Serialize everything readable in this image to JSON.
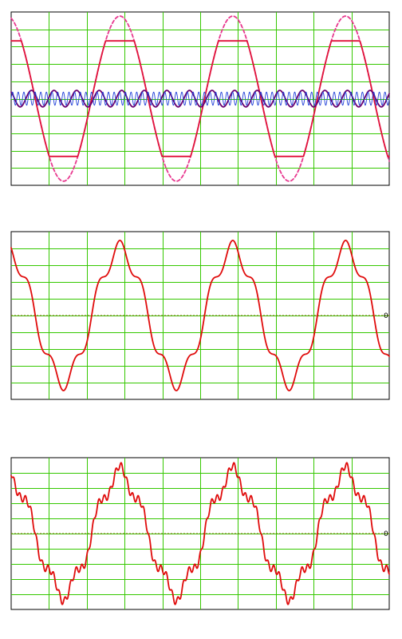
{
  "chart_data": [
    {
      "type": "line",
      "title": "",
      "xlabel": "",
      "ylabel": "",
      "xlim": [
        0,
        3.35
      ],
      "ylim": [
        -1.05,
        1.05
      ],
      "grid": true,
      "x_gridlines": 10,
      "y_gridlines": 10,
      "zero_reference": false,
      "series": [
        {
          "kind": "sine",
          "amplitude": 1.0,
          "frequency": 1,
          "phase": 1.8,
          "color": "#e8388f",
          "dash": true
        },
        {
          "kind": "clipped-sine",
          "amplitude": 1.0,
          "clip": 0.7,
          "frequency": 1,
          "phase": 1.8,
          "color": "#e0143c"
        },
        {
          "kind": "sine",
          "amplitude": 0.1,
          "frequency": 5,
          "phase": 2.2,
          "color": "#6a006e"
        },
        {
          "kind": "sine",
          "amplitude": 0.08,
          "frequency": 20,
          "phase": 0.0,
          "color": "#1f3fd8"
        }
      ]
    },
    {
      "type": "line",
      "title": "",
      "xlabel": "",
      "ylabel": "",
      "xlim": [
        0,
        3.35
      ],
      "ylim": [
        -1.05,
        1.05
      ],
      "grid": true,
      "x_gridlines": 10,
      "y_gridlines": 10,
      "zero_reference": true,
      "zero_label": "0",
      "series": [
        {
          "kind": "fundamental+5th",
          "amplitude": 0.82,
          "h5": 0.12,
          "frequency": 1,
          "phase": 1.8,
          "color": "#e00c0c"
        }
      ]
    },
    {
      "type": "line",
      "title": "",
      "xlabel": "",
      "ylabel": "",
      "xlim": [
        0,
        3.35
      ],
      "ylim": [
        -1.05,
        1.05
      ],
      "grid": true,
      "x_gridlines": 10,
      "y_gridlines": 10,
      "zero_reference": true,
      "zero_label": "0",
      "series": [
        {
          "kind": "fundamental+5th+20th",
          "amplitude": 0.82,
          "h5": 0.12,
          "h20": 0.05,
          "frequency": 1,
          "phase": 1.8,
          "color": "#e00c0c"
        }
      ]
    }
  ]
}
